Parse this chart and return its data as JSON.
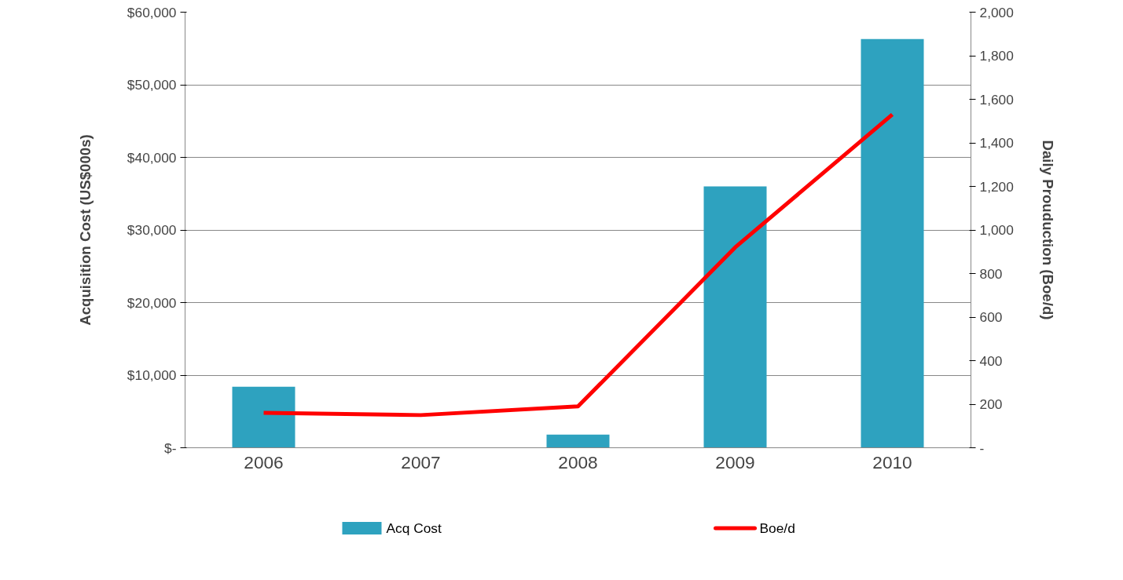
{
  "chart_data": {
    "type": "bar",
    "categories": [
      "2006",
      "2007",
      "2008",
      "2009",
      "2010"
    ],
    "ylabel": "Acquisition Cost (US$000s)",
    "y2label": "Daily Prouduction (Boe/d)",
    "ylim": [
      0,
      60000
    ],
    "yticks": [
      {
        "value": 0,
        "label": "$-"
      },
      {
        "value": 10000,
        "label": "$10,000"
      },
      {
        "value": 20000,
        "label": "$20,000"
      },
      {
        "value": 30000,
        "label": "$30,000"
      },
      {
        "value": 40000,
        "label": "$40,000"
      },
      {
        "value": 50000,
        "label": "$50,000"
      },
      {
        "value": 60000,
        "label": "$60,000"
      }
    ],
    "y2lim": [
      0,
      2000
    ],
    "y2ticks": [
      {
        "value": 0,
        "label": "-"
      },
      200,
      400,
      600,
      800,
      {
        "value": 1000,
        "label": "1,000"
      },
      {
        "value": 1200,
        "label": "1,200"
      },
      {
        "value": 1400,
        "label": "1,400"
      },
      {
        "value": 1600,
        "label": "1,600"
      },
      {
        "value": 1800,
        "label": "1,800"
      },
      {
        "value": 2000,
        "label": "2,000"
      }
    ],
    "grid": "y",
    "legend": "bottom",
    "series": [
      {
        "name": "Acq Cost",
        "color": "#2ea2bf",
        "values": [
          8400,
          0,
          1800,
          36000,
          56300
        ]
      },
      {
        "name": "Boe/d",
        "type": "line",
        "axis": "y2",
        "color": "#ff0000",
        "values": [
          160,
          150,
          190,
          920,
          1530
        ]
      }
    ]
  }
}
